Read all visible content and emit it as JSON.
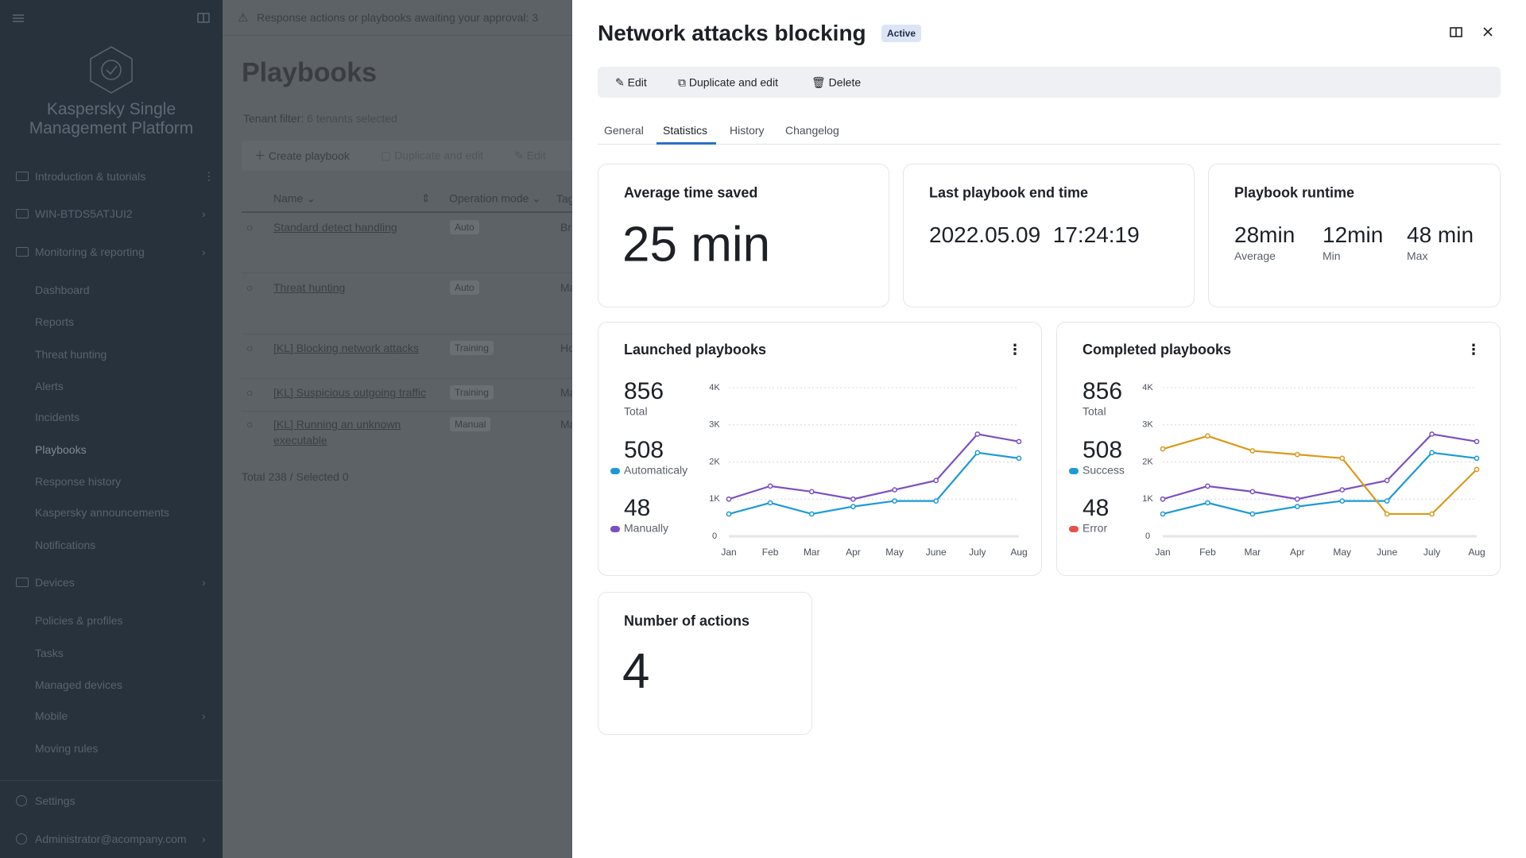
{
  "sidebar": {
    "product": "Kaspersky Single Management Platform",
    "nav": [
      "Introduction & tutorials",
      "WIN-BTDS5ATJUI2",
      "Monitoring & reporting",
      "Dashboard",
      "Reports",
      "Threat hunting",
      "Alerts",
      "Incidents",
      "Playbooks",
      "Response history",
      "Kaspersky announcements",
      "Notifications",
      "Devices",
      "Policies & profiles",
      "Tasks",
      "Managed devices",
      "Mobile",
      "Moving rules",
      "Settings",
      "Administrator@acompany.com"
    ]
  },
  "list": {
    "banner": "Response actions or playbooks awaiting your approval: 3",
    "title": "Playbooks",
    "tenant_filter": "Tenant filter:",
    "tenant_value": "6 tenants selected",
    "toolbar": [
      "Create playbook",
      "Duplicate and edit",
      "Edit"
    ],
    "columns": [
      "Name",
      "Operation mode",
      "Tags"
    ],
    "rows": [
      [
        "Standard detect handling",
        "Auto",
        "Br"
      ],
      [
        "Threat hunting",
        "Auto",
        "Ma"
      ],
      [
        "[KL] Blocking network attacks",
        "Training",
        "Ho"
      ],
      [
        "[KL] Suspicious outgoing traffic",
        "Training",
        "Ma"
      ],
      [
        "[KL] Running an unknown executable",
        "Manual",
        "Ma"
      ]
    ],
    "footer": "Total 238 / Selected 0"
  },
  "panel": {
    "title": "Network attacks blocking",
    "status": "Active",
    "actions": [
      "Edit",
      "Duplicate and edit",
      "Delete"
    ],
    "tabs": [
      "General",
      "Statistics",
      "History",
      "Changelog"
    ],
    "average_time": {
      "title": "Average time saved",
      "value": "25 min"
    },
    "last_end": {
      "title": "Last playbook end time",
      "value": "2022.05.09  17:24:19"
    },
    "runtime": {
      "title": "Playbook runtime",
      "items": [
        {
          "value": "28min",
          "label": "Average"
        },
        {
          "value": "12min",
          "label": "Min"
        },
        {
          "value": "48 min",
          "label": "Max"
        }
      ]
    },
    "actions_count": {
      "title": "Number of actions",
      "value": "4"
    }
  },
  "chart_data": [
    {
      "type": "line",
      "title": "Launched playbooks",
      "stats": [
        {
          "value": 856,
          "label": "Total"
        },
        {
          "value": 508,
          "label": "Automaticaly",
          "dot": "#1c9ad6"
        },
        {
          "value": 48,
          "label": "Manually",
          "dot": "#7b4fc4"
        }
      ],
      "categories": [
        "Jan",
        "Feb",
        "Mar",
        "Apr",
        "May",
        "June",
        "July",
        "Aug"
      ],
      "ylim": [
        0,
        4000
      ],
      "yticks": [
        0,
        {
          "value": 1000,
          "label": "1K"
        },
        {
          "value": 2000,
          "label": "2K"
        },
        {
          "value": 3000,
          "label": "3K"
        },
        {
          "value": 4000,
          "label": "4K"
        }
      ],
      "grid": true,
      "series": [
        {
          "color": "#7b4fc4",
          "values": [
            1000,
            1350,
            1200,
            1000,
            1250,
            1500,
            2750,
            2550
          ]
        },
        {
          "color": "#1c9ad6",
          "values": [
            600,
            900,
            600,
            800,
            950,
            950,
            2250,
            2100
          ]
        }
      ]
    },
    {
      "type": "line",
      "title": "Completed playbooks",
      "stats": [
        {
          "value": 856,
          "label": "Total"
        },
        {
          "value": 508,
          "label": "Success",
          "dot": "#1c9ad6"
        },
        {
          "value": 48,
          "label": "Error",
          "dot": "#e8514a"
        }
      ],
      "categories": [
        "Jan",
        "Feb",
        "Mar",
        "Apr",
        "May",
        "June",
        "July",
        "Aug"
      ],
      "ylim": [
        0,
        4000
      ],
      "yticks": [
        0,
        {
          "value": 1000,
          "label": "1K"
        },
        {
          "value": 2000,
          "label": "2K"
        },
        {
          "value": 3000,
          "label": "3K"
        },
        {
          "value": 4000,
          "label": "4K"
        }
      ],
      "grid": true,
      "series": [
        {
          "color": "#7b4fc4",
          "values": [
            1000,
            1350,
            1200,
            1000,
            1250,
            1500,
            2750,
            2550
          ]
        },
        {
          "color": "#1c9ad6",
          "values": [
            600,
            900,
            600,
            800,
            950,
            950,
            2250,
            2100
          ]
        },
        {
          "color": "#d99a1a",
          "values": [
            2350,
            2700,
            2300,
            2200,
            2100,
            600,
            600,
            1800
          ]
        }
      ]
    }
  ]
}
